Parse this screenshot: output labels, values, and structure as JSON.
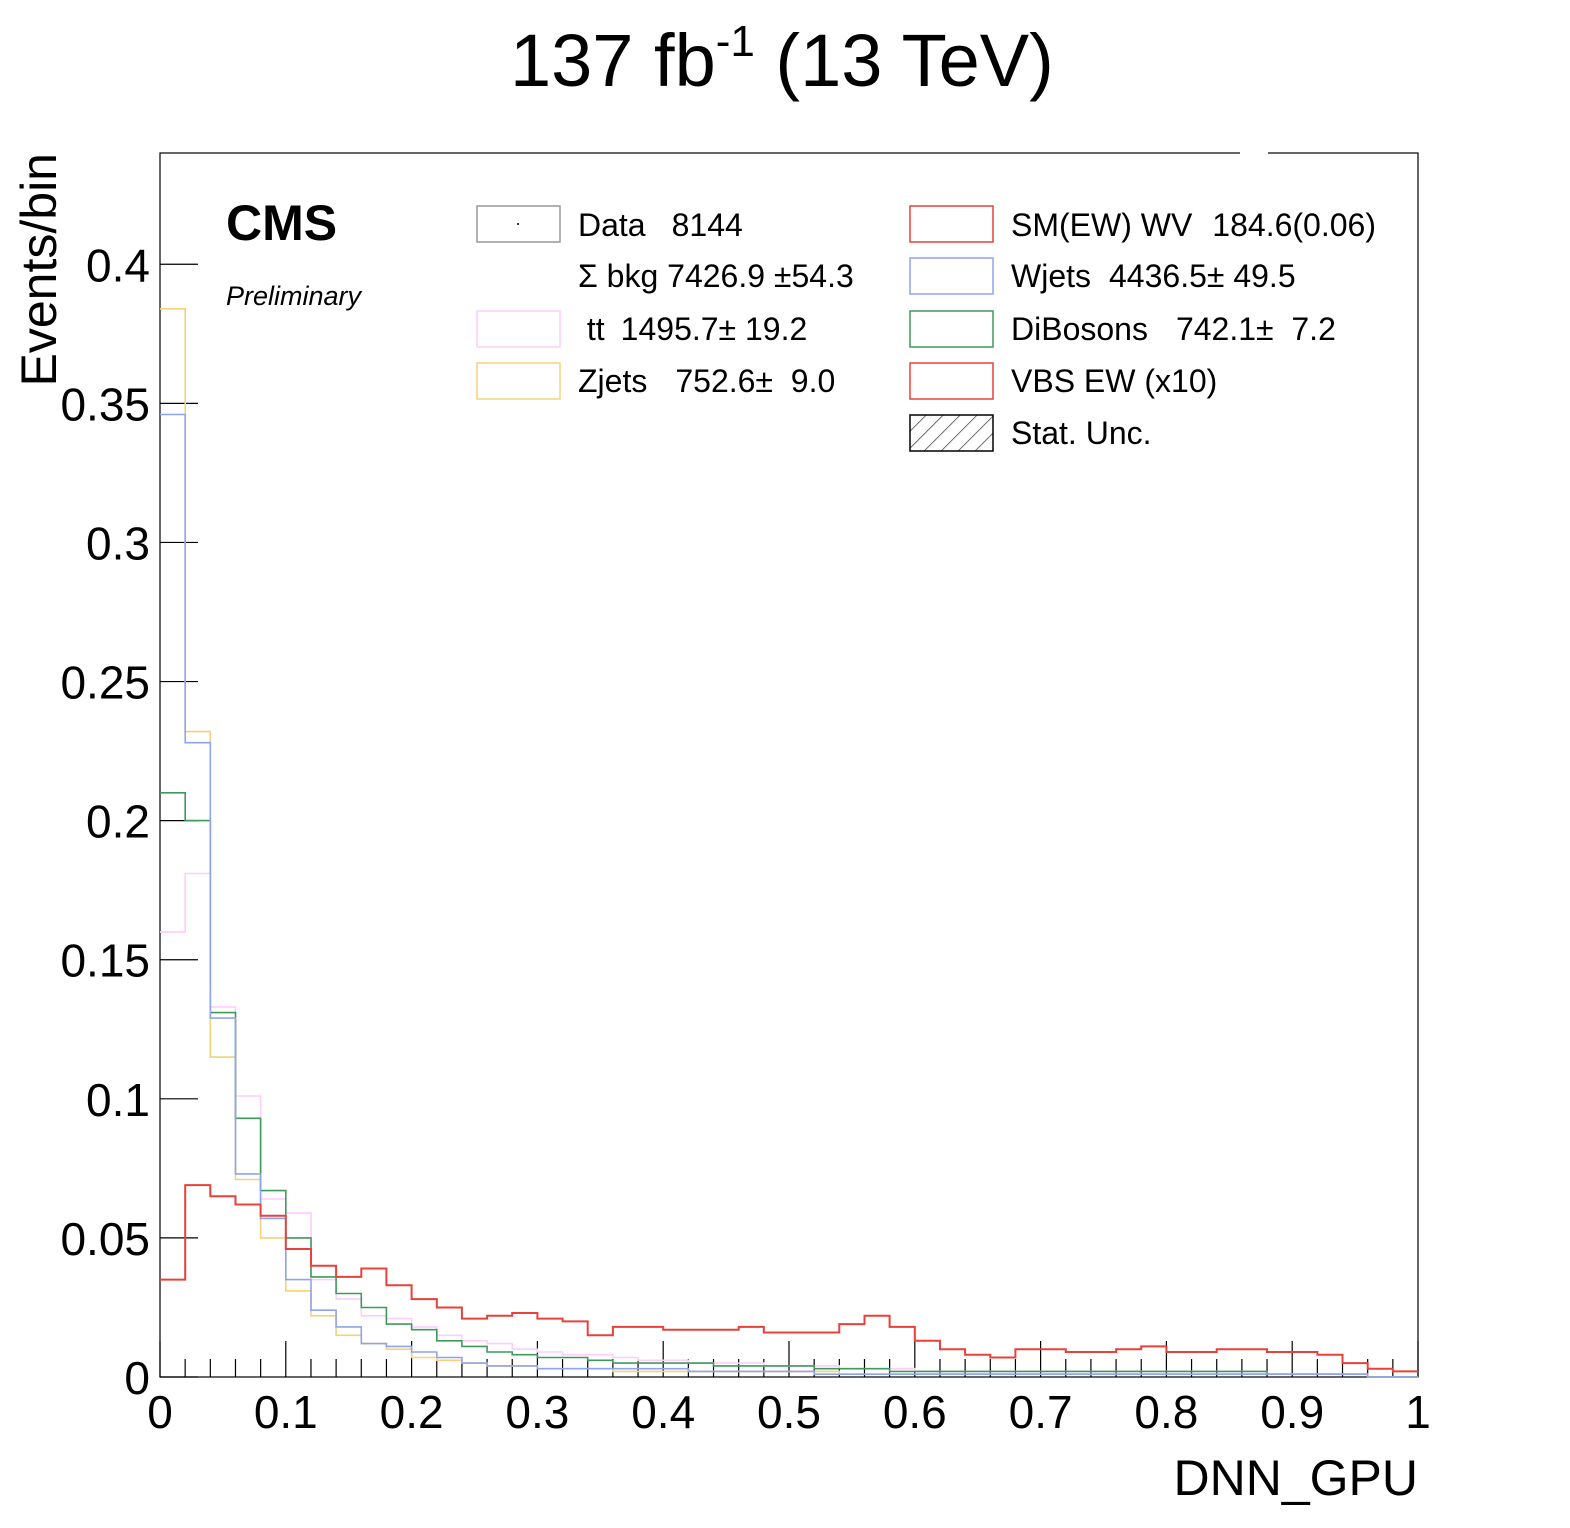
{
  "chart_data": {
    "type": "histogram-step",
    "title": "137 fb",
    "title_sup": "-1",
    "title_rest": " (13 TeV)",
    "experiment": "CMS",
    "status": "Preliminary",
    "xlabel": "DNN_GPU",
    "ylabel": "Events/bin",
    "xlim": [
      0,
      1
    ],
    "ylim": [
      0,
      0.44
    ],
    "xticks": [
      "0",
      "0.1",
      "0.2",
      "0.3",
      "0.4",
      "0.5",
      "0.6",
      "0.7",
      "0.8",
      "0.9",
      "1"
    ],
    "yticks": [
      "0",
      "0.05",
      "0.1",
      "0.15",
      "0.2",
      "0.25",
      "0.3",
      "0.35",
      "0.4"
    ],
    "bin_edges_start": 0,
    "bin_width": 0.02,
    "legend": [
      {
        "key": "data",
        "label": "Data",
        "value": "8144",
        "color": "#999999"
      },
      {
        "key": "sumbkg",
        "label": "Σ bkg 7426.9 ±54.3",
        "value": "",
        "color": ""
      },
      {
        "key": "tt",
        "label": " tt",
        "value": "1495.7± 19.2",
        "color": "#ffccff"
      },
      {
        "key": "zjets",
        "label": "Zjets",
        "value": "752.6±  9.0",
        "color": "#f3d27a"
      },
      {
        "key": "smew",
        "label": "SM(EW) WV",
        "value": "184.6(0.06)",
        "color": "#e8413a"
      },
      {
        "key": "wjets",
        "label": "Wjets",
        "value": "4436.5± 49.5",
        "color": "#8fa4ee"
      },
      {
        "key": "dibosons",
        "label": "DiBosons",
        "value": "742.1±  7.2",
        "color": "#3f9a5a"
      },
      {
        "key": "vbs",
        "label": "VBS EW (x10)",
        "value": "",
        "color": "#e8413a"
      },
      {
        "key": "stat",
        "label": "Stat. Unc.",
        "value": "",
        "color": "#000000"
      }
    ],
    "series": [
      {
        "name": "Zjets",
        "color": "#f3d27a",
        "values": [
          0.384,
          0.232,
          0.115,
          0.071,
          0.05,
          0.031,
          0.022,
          0.015,
          0.012,
          0.01,
          0.007,
          0.006,
          0.005,
          0.004,
          0.004,
          0.003,
          0.003,
          0.003,
          0.002,
          0.002,
          0.002,
          0.002,
          0.002,
          0.002,
          0.002,
          0.002,
          0.002,
          0.001,
          0.001,
          0.001,
          0.001,
          0.001,
          0.001,
          0.001,
          0.001,
          0.001,
          0.001,
          0.001,
          0.001,
          0.001,
          0.001,
          0.001,
          0.001,
          0.001,
          0.001,
          0.001,
          0.001,
          0.001,
          0.0,
          0.0
        ]
      },
      {
        "name": "tt",
        "color": "#ffccff",
        "values": [
          0.16,
          0.181,
          0.133,
          0.101,
          0.064,
          0.059,
          0.035,
          0.028,
          0.022,
          0.021,
          0.018,
          0.015,
          0.013,
          0.012,
          0.01,
          0.009,
          0.008,
          0.008,
          0.007,
          0.006,
          0.006,
          0.005,
          0.005,
          0.005,
          0.004,
          0.004,
          0.004,
          0.003,
          0.003,
          0.003,
          0.002,
          0.002,
          0.002,
          0.002,
          0.002,
          0.002,
          0.002,
          0.002,
          0.002,
          0.002,
          0.002,
          0.002,
          0.002,
          0.002,
          0.001,
          0.001,
          0.001,
          0.001,
          0.0,
          0.0
        ]
      },
      {
        "name": "DiBosons",
        "color": "#3f9a5a",
        "values": [
          0.21,
          0.2,
          0.131,
          0.093,
          0.067,
          0.05,
          0.036,
          0.03,
          0.025,
          0.019,
          0.017,
          0.013,
          0.011,
          0.009,
          0.008,
          0.007,
          0.007,
          0.006,
          0.005,
          0.005,
          0.005,
          0.005,
          0.004,
          0.004,
          0.004,
          0.004,
          0.003,
          0.003,
          0.003,
          0.002,
          0.002,
          0.002,
          0.002,
          0.002,
          0.002,
          0.002,
          0.002,
          0.002,
          0.002,
          0.002,
          0.002,
          0.002,
          0.002,
          0.002,
          0.001,
          0.001,
          0.001,
          0.001,
          0.0,
          0.0
        ]
      },
      {
        "name": "Wjets",
        "color": "#8fa4ee",
        "values": [
          0.346,
          0.228,
          0.129,
          0.073,
          0.057,
          0.035,
          0.024,
          0.018,
          0.012,
          0.011,
          0.009,
          0.007,
          0.005,
          0.004,
          0.004,
          0.003,
          0.003,
          0.003,
          0.003,
          0.003,
          0.003,
          0.002,
          0.002,
          0.002,
          0.002,
          0.002,
          0.001,
          0.001,
          0.001,
          0.001,
          0.001,
          0.001,
          0.001,
          0.001,
          0.001,
          0.001,
          0.001,
          0.001,
          0.001,
          0.001,
          0.001,
          0.001,
          0.001,
          0.001,
          0.001,
          0.001,
          0.001,
          0.001,
          0.0,
          0.0
        ]
      },
      {
        "name": "VBS EW (x10)",
        "color": "#e8413a",
        "values": [
          0.035,
          0.069,
          0.065,
          0.062,
          0.058,
          0.046,
          0.04,
          0.036,
          0.039,
          0.033,
          0.028,
          0.025,
          0.021,
          0.022,
          0.023,
          0.021,
          0.02,
          0.015,
          0.018,
          0.018,
          0.017,
          0.017,
          0.017,
          0.018,
          0.016,
          0.016,
          0.016,
          0.019,
          0.022,
          0.018,
          0.013,
          0.01,
          0.008,
          0.007,
          0.01,
          0.01,
          0.009,
          0.009,
          0.01,
          0.011,
          0.009,
          0.009,
          0.01,
          0.01,
          0.009,
          0.009,
          0.008,
          0.005,
          0.003,
          0.002
        ]
      }
    ]
  }
}
